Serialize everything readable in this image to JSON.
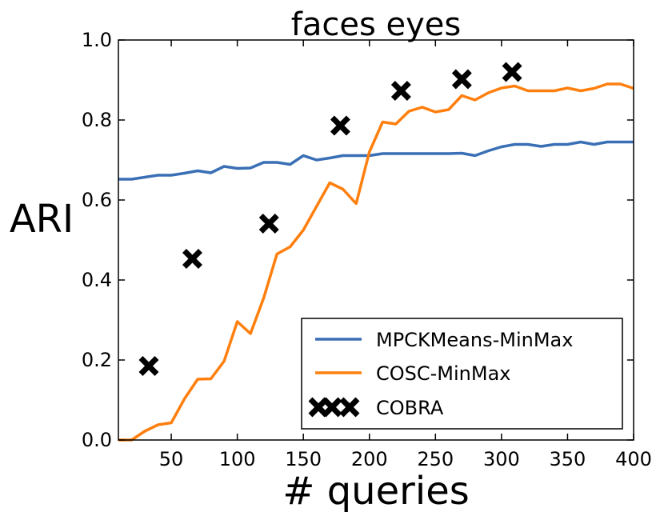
{
  "chart_data": {
    "type": "line",
    "title": "faces eyes",
    "xlabel": "# queries",
    "ylabel": "ARI",
    "xlim": [
      10,
      400
    ],
    "ylim": [
      0.0,
      1.0
    ],
    "xticks": [
      50,
      100,
      150,
      200,
      250,
      300,
      350,
      400
    ],
    "xtick_labels": [
      "50",
      "100",
      "150",
      "200",
      "250",
      "300",
      "350",
      "400"
    ],
    "yticks": [
      0.0,
      0.2,
      0.4,
      0.6,
      0.8,
      1.0
    ],
    "ytick_labels": [
      "0.0",
      "0.2",
      "0.4",
      "0.6",
      "0.8",
      "1.0"
    ],
    "grid": false,
    "legend_position": "lower-right",
    "series": [
      {
        "name": "MPCKMeans-MinMax",
        "kind": "line",
        "color": "#3a6fb5",
        "x": [
          10,
          20,
          30,
          40,
          50,
          60,
          70,
          80,
          90,
          100,
          110,
          120,
          130,
          140,
          150,
          160,
          170,
          180,
          190,
          200,
          210,
          220,
          230,
          240,
          250,
          260,
          270,
          280,
          290,
          300,
          310,
          320,
          330,
          340,
          350,
          360,
          370,
          380,
          390,
          400
        ],
        "y": [
          0.652,
          0.652,
          0.657,
          0.662,
          0.662,
          0.667,
          0.673,
          0.668,
          0.684,
          0.679,
          0.68,
          0.694,
          0.694,
          0.689,
          0.711,
          0.7,
          0.705,
          0.711,
          0.711,
          0.711,
          0.716,
          0.716,
          0.716,
          0.716,
          0.716,
          0.716,
          0.717,
          0.711,
          0.723,
          0.733,
          0.739,
          0.739,
          0.734,
          0.739,
          0.739,
          0.745,
          0.739,
          0.745,
          0.745,
          0.745
        ]
      },
      {
        "name": "COSC-MinMax",
        "kind": "line",
        "color": "#ff7f0e",
        "x": [
          10,
          20,
          30,
          40,
          50,
          60,
          70,
          80,
          90,
          100,
          110,
          120,
          130,
          140,
          150,
          160,
          170,
          180,
          190,
          200,
          210,
          220,
          230,
          240,
          250,
          260,
          270,
          280,
          290,
          300,
          310,
          320,
          330,
          340,
          350,
          360,
          370,
          380,
          390,
          400
        ],
        "y": [
          0.0,
          0.0,
          0.022,
          0.038,
          0.043,
          0.103,
          0.152,
          0.153,
          0.197,
          0.296,
          0.266,
          0.355,
          0.465,
          0.483,
          0.525,
          0.584,
          0.643,
          0.627,
          0.591,
          0.72,
          0.795,
          0.79,
          0.822,
          0.832,
          0.82,
          0.826,
          0.861,
          0.85,
          0.868,
          0.88,
          0.885,
          0.873,
          0.873,
          0.873,
          0.88,
          0.873,
          0.879,
          0.89,
          0.89,
          0.879
        ]
      },
      {
        "name": "COBRA",
        "kind": "scatter",
        "marker": "x",
        "color": "#000000",
        "x": [
          33,
          66,
          124,
          178,
          224,
          270,
          308
        ],
        "y": [
          0.185,
          0.453,
          0.541,
          0.786,
          0.873,
          0.902,
          0.92
        ]
      }
    ]
  }
}
